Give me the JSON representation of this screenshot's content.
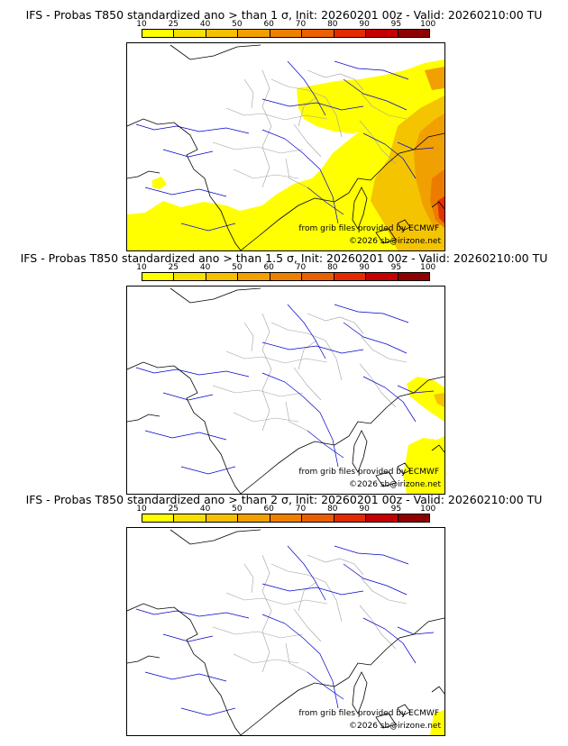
{
  "colors": {
    "scale": [
      "#ffff00",
      "#f7e000",
      "#f5c000",
      "#f2a000",
      "#ee8000",
      "#ea6000",
      "#e22c00",
      "#c40000",
      "#900000",
      "#500000"
    ],
    "prob_yellow": "#ffff00",
    "prob_light_orange": "#f4c400",
    "prob_orange": "#f0a000",
    "prob_dark_orange": "#ec7c00",
    "prob_red": "#e23000",
    "coastline": "#000000",
    "rivers": "#0000cc",
    "borders": "#a0a0a0"
  },
  "scale_labels": [
    "10",
    "25",
    "40",
    "50",
    "60",
    "70",
    "80",
    "90",
    "95",
    "100"
  ],
  "panels": [
    {
      "title": "IFS - Probas T850  standardized ano > than 1 σ, Init: 20260201 00z - Valid: 20260210:00 TU",
      "attribution": "from grib files provided by ECMWF",
      "copyright": "©2026 sb@irizone.net"
    },
    {
      "title": "IFS - Probas T850  standardized ano > than 1.5 σ, Init: 20260201 00z - Valid: 20260210:00 TU",
      "attribution": "from grib files provided by ECMWF",
      "copyright": "©2026 sb@irizone.net"
    },
    {
      "title": "IFS - Probas T850  standardized ano > than 2 σ, Init: 20260201 00z - Valid: 20260210:00 TU",
      "attribution": "from grib files provided by ECMWF",
      "copyright": "©2026 sb@irizone.net"
    }
  ]
}
